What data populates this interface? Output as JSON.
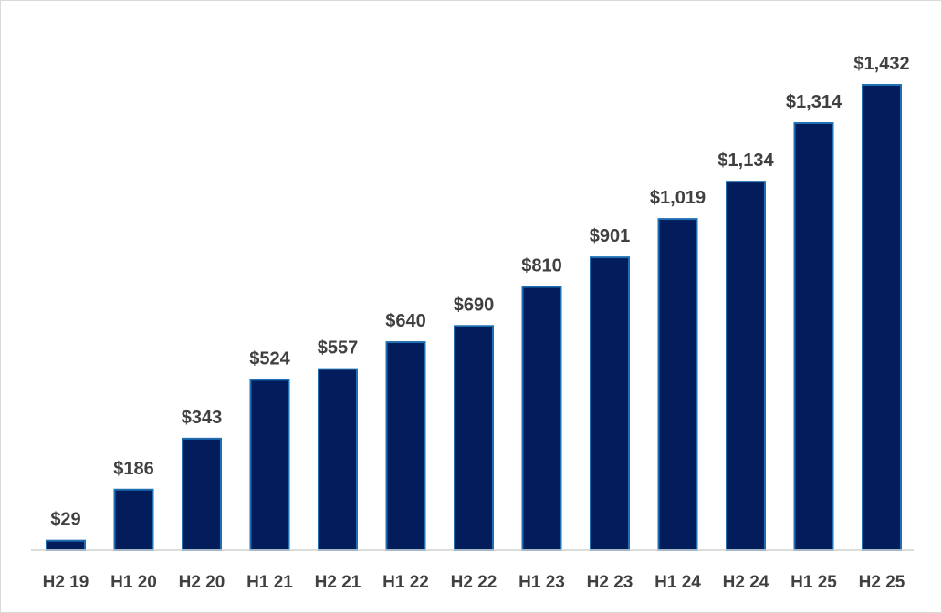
{
  "chart_data": {
    "type": "bar",
    "title": "",
    "xlabel": "",
    "ylabel": "",
    "grid": false,
    "legend": "none",
    "ylim": [
      0,
      1432
    ],
    "categories": [
      "H2 19",
      "H1 20",
      "H2 20",
      "H1 21",
      "H2 21",
      "H1 22",
      "H2 22",
      "H1 23",
      "H2 23",
      "H1 24",
      "H2 24",
      "H1 25",
      "H2 25"
    ],
    "values": [
      29,
      186,
      343,
      524,
      557,
      640,
      690,
      810,
      901,
      1019,
      1134,
      1314,
      1432
    ],
    "data_labels": [
      "$29",
      "$186",
      "$343",
      "$524",
      "$557",
      "$640",
      "$690",
      "$810",
      "$901",
      "$1,019",
      "$1,134",
      "$1,314",
      "$1,432"
    ],
    "colors": {
      "bar_fill": "#021c5c",
      "bar_edge": "#1f6fb2",
      "label_text": "#404040",
      "axis": "#d0d0d0"
    }
  }
}
